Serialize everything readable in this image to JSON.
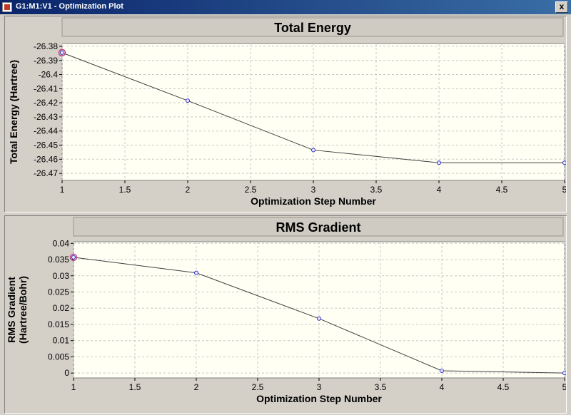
{
  "window": {
    "title": "G1:M1:V1 - Optimization Plot",
    "close_label": "x"
  },
  "colors": {
    "plot_bg": "#fffff4",
    "grid": "#c8c8c8",
    "line": "#404040",
    "point": "#3030d0",
    "highlight": "#c04080"
  },
  "chart_data": [
    {
      "type": "line",
      "title": "Total Energy",
      "xlabel": "Optimization Step Number",
      "ylabel": [
        "Total Energy (Hartree)"
      ],
      "xlim": [
        1,
        5
      ],
      "ylim": [
        -26.475,
        -26.378
      ],
      "xticks": [
        1,
        1.5,
        2,
        2.5,
        3,
        3.5,
        4,
        4.5,
        5
      ],
      "xtick_labels": [
        "1",
        "1.5",
        "2",
        "2.5",
        "3",
        "3.5",
        "4",
        "4.5",
        "5"
      ],
      "yticks": [
        -26.38,
        -26.39,
        -26.4,
        -26.41,
        -26.42,
        -26.43,
        -26.44,
        -26.45,
        -26.46,
        -26.47
      ],
      "ytick_labels": [
        "-26.38",
        "-26.39",
        "-26.4",
        "-26.41",
        "-26.42",
        "-26.43",
        "-26.44",
        "-26.45",
        "-26.46",
        "-26.47"
      ],
      "grid": true,
      "x": [
        1,
        2,
        3,
        4,
        5
      ],
      "y": [
        -26.3845,
        -26.4185,
        -26.4535,
        -26.4625,
        -26.4625
      ],
      "highlighted_point": 1
    },
    {
      "type": "line",
      "title": "RMS Gradient",
      "xlabel": "Optimization Step Number",
      "ylabel": [
        "RMS Gradient",
        "(Hartree/Bohr)"
      ],
      "xlim": [
        1,
        5
      ],
      "ylim": [
        -0.0015,
        0.0405
      ],
      "xticks": [
        1,
        1.5,
        2,
        2.5,
        3,
        3.5,
        4,
        4.5,
        5
      ],
      "xtick_labels": [
        "1",
        "1.5",
        "2",
        "2.5",
        "3",
        "3.5",
        "4",
        "4.5",
        "5"
      ],
      "yticks": [
        0.04,
        0.035,
        0.03,
        0.025,
        0.02,
        0.015,
        0.01,
        0.005,
        0
      ],
      "ytick_labels": [
        "0.04",
        "0.035",
        "0.03",
        "0.025",
        "0.02",
        "0.015",
        "0.01",
        "0.005",
        "0"
      ],
      "grid": true,
      "x": [
        1,
        2,
        3,
        4,
        5
      ],
      "y": [
        0.0357,
        0.0309,
        0.0168,
        0.0007,
        0.0
      ],
      "highlighted_point": 1
    }
  ]
}
